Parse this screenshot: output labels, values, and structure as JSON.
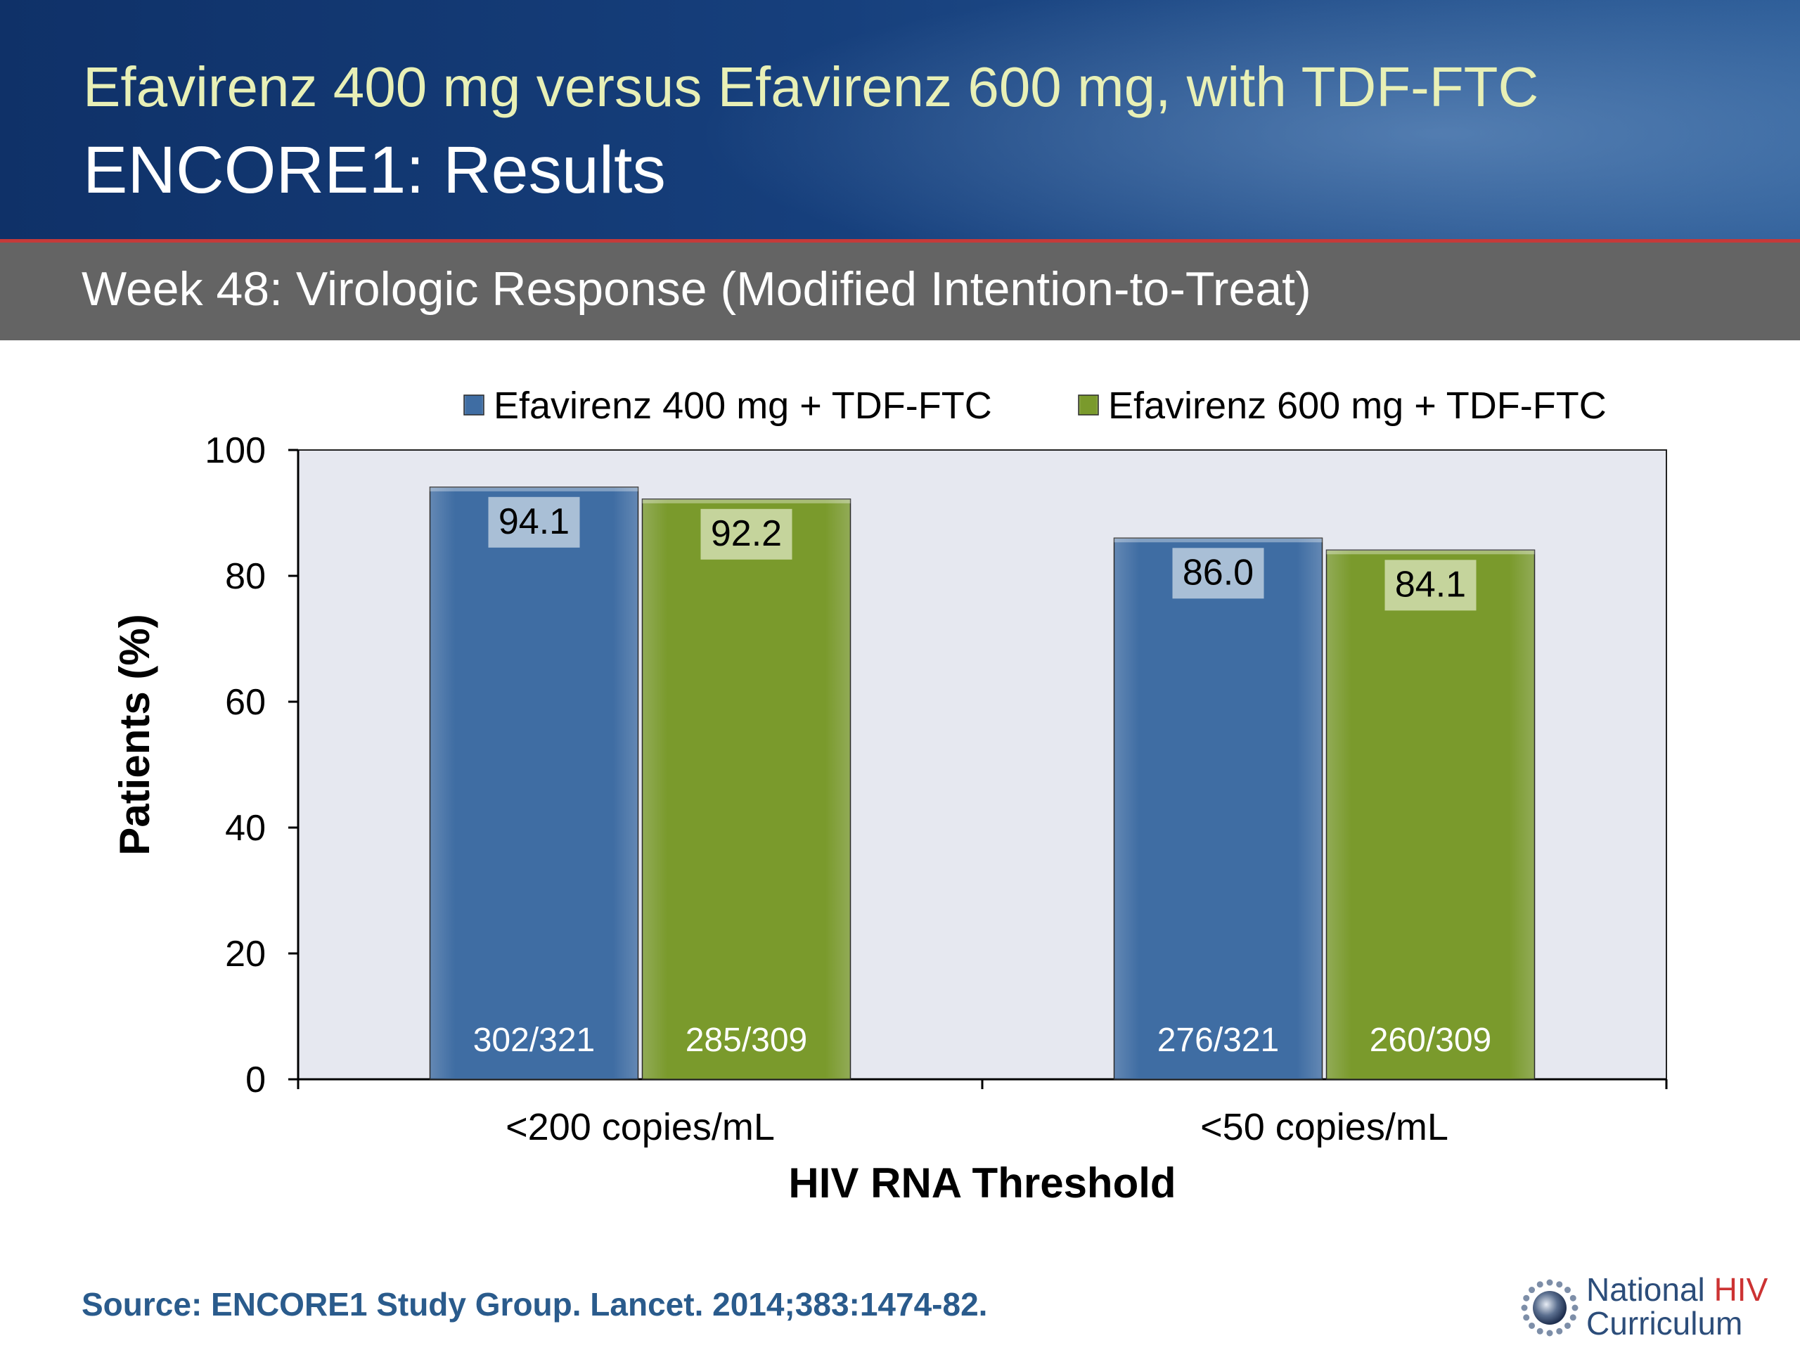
{
  "slide": {
    "title_line1": "Efavirenz 400 mg versus Efavirenz 600 mg, with TDF-FTC",
    "title_line2": "ENCORE1: Results",
    "subtitle": "Week 48: Virologic Response (Modified Intention-to-Treat)",
    "source": "Source: ENCORE1 Study Group. Lancet. 2014;383:1474-82.",
    "logo_line1_a": "National ",
    "logo_line1_b": "HIV",
    "logo_line2": "Curriculum"
  },
  "chart_data": {
    "type": "bar",
    "title": "",
    "xlabel": "HIV RNA Threshold",
    "ylabel": "Patients (%)",
    "ylim": [
      0,
      100
    ],
    "yticks": [
      0,
      20,
      40,
      60,
      80,
      100
    ],
    "categories": [
      "<200 copies/mL",
      "<50 copies/mL"
    ],
    "legend_position": "top",
    "series": [
      {
        "name": "Efavirenz 400 mg + TDF-FTC",
        "color": "#3f6da3",
        "label_bg": "#a9bfd6",
        "values": [
          94.1,
          86.0
        ],
        "value_labels": [
          "94.1",
          "86.0"
        ],
        "counts": [
          "302/321",
          "276/321"
        ]
      },
      {
        "name": "Efavirenz 600 mg + TDF-FTC",
        "color": "#7a9a2c",
        "label_bg": "#c5d49c",
        "values": [
          92.2,
          84.1
        ],
        "value_labels": [
          "92.2",
          "84.1"
        ],
        "counts": [
          "285/309",
          "260/309"
        ]
      }
    ]
  }
}
